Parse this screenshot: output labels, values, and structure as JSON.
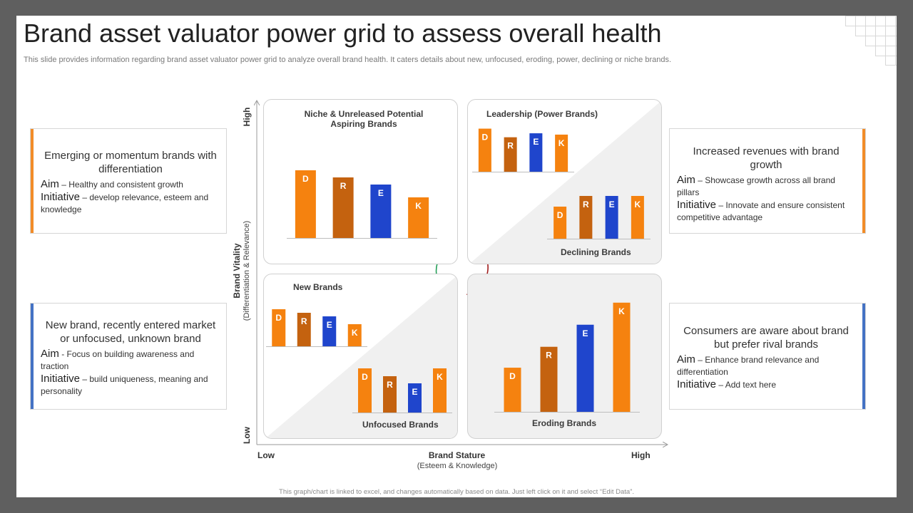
{
  "title": "Brand asset valuator power grid to assess overall health",
  "subtitle": "This slide provides information regarding brand asset valuator power grid to analyze overall brand health. It caters details about new, unfocused, eroding, power, declining or niche brands.",
  "footer_note": "This graph/chart is linked to excel, and changes automatically based on data. Just left click on it and select “Edit Data”.",
  "colors": {
    "orange": "#f5820f",
    "dark_orange": "#c4620f",
    "blue": "#1f45cc",
    "accent_orange": "#f28c28",
    "accent_blue": "#4472c4",
    "arrow_green": "#28a05a",
    "arrow_red": "#a01c1c"
  },
  "boxes": {
    "top_left": {
      "heading": "Emerging or momentum brands with differentiation",
      "aim_label": "Aim",
      "aim_text": "– Healthy and consistent growth",
      "initiative_label": "Initiative",
      "initiative_text": "– develop relevance, esteem and knowledge"
    },
    "bottom_left": {
      "heading": "New brand, recently entered market or unfocused, unknown brand",
      "aim_label": "Aim",
      "aim_text": "- Focus on building awareness and traction",
      "initiative_label": "Initiative",
      "initiative_text": "– build uniqueness, meaning and personality"
    },
    "top_right": {
      "heading": "Increased revenues with brand growth",
      "aim_label": "Aim",
      "aim_text": "– Showcase growth across all brand pillars",
      "initiative_label": "Initiative",
      "initiative_text": "– Innovate and ensure consistent competitive advantage"
    },
    "bottom_right": {
      "heading": "Consumers are aware about brand but prefer rival brands",
      "aim_label": "Aim",
      "aim_text": "– Enhance brand relevance and differentiation",
      "initiative_label": "Initiative",
      "initiative_text": "– Add text here"
    }
  },
  "axes": {
    "y_title": "Brand Vitality",
    "y_subtitle": "(Differentiation & Relevance)",
    "y_high": "High",
    "y_low": "Low",
    "x_title": "Brand Stature",
    "x_subtitle": "(Esteem & Knowledge)",
    "x_low": "Low",
    "x_high": "High"
  },
  "quadrants": {
    "niche": {
      "label": "Niche & Unreleased Potential Aspiring Brands"
    },
    "leadership": {
      "label": "Leadership (Power Brands)"
    },
    "declining": {
      "label": "Declining Brands"
    },
    "new": {
      "label": "New Brands"
    },
    "unfocused": {
      "label": "Unfocused Brands"
    },
    "eroding": {
      "label": "Eroding Brands"
    }
  },
  "chart_data": [
    {
      "type": "bar",
      "title": "Niche & Unreleased Potential Aspiring Brands",
      "categories": [
        "D",
        "R",
        "E",
        "K"
      ],
      "values": [
        95,
        85,
        75,
        57
      ],
      "ylim": [
        0,
        100
      ]
    },
    {
      "type": "bar",
      "title": "Leadership (Power Brands)",
      "categories": [
        "D",
        "R",
        "E",
        "K"
      ],
      "values": [
        65,
        52,
        58,
        56
      ],
      "ylim": [
        0,
        100
      ]
    },
    {
      "type": "bar",
      "title": "Declining Brands",
      "categories": [
        "D",
        "R",
        "E",
        "K"
      ],
      "values": [
        45,
        60,
        60,
        60
      ],
      "ylim": [
        0,
        100
      ]
    },
    {
      "type": "bar",
      "title": "New Brands",
      "categories": [
        "D",
        "R",
        "E",
        "K"
      ],
      "values": [
        52,
        47,
        42,
        31
      ],
      "ylim": [
        0,
        100
      ]
    },
    {
      "type": "bar",
      "title": "Unfocused Brands",
      "categories": [
        "D",
        "R",
        "E",
        "K"
      ],
      "values": [
        62,
        51,
        41,
        62
      ],
      "ylim": [
        0,
        100
      ]
    },
    {
      "type": "bar",
      "title": "Eroding Brands",
      "categories": [
        "D",
        "R",
        "E",
        "K"
      ],
      "values": [
        38,
        56,
        75,
        94
      ],
      "ylim": [
        0,
        100
      ]
    }
  ]
}
